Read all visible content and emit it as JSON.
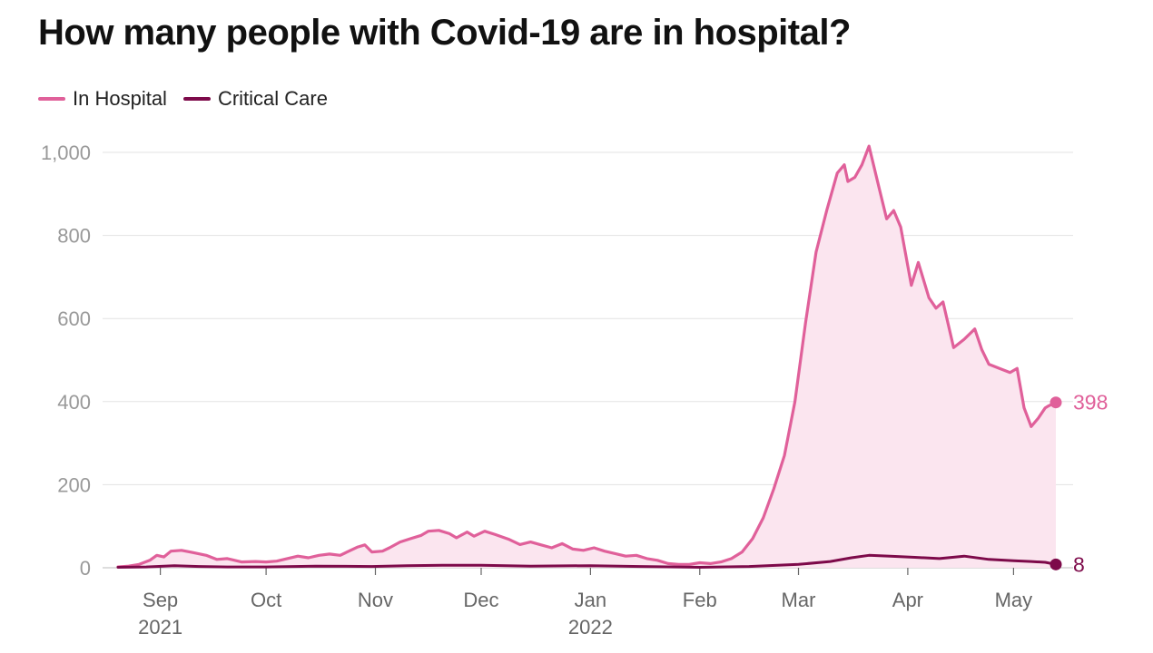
{
  "chart_data": {
    "type": "line",
    "title": "How many people with Covid-19 are in hospital?",
    "xlabel": "",
    "ylabel": "",
    "ylim": [
      0,
      1000
    ],
    "yticks": [
      0,
      200,
      400,
      600,
      800,
      "1,000"
    ],
    "x_axis": {
      "start": "2021-08-20",
      "end": "2022-05-13",
      "ticks": [
        {
          "label": "Sep",
          "sublabel": "2021",
          "date": "2021-09-01"
        },
        {
          "label": "Oct",
          "sublabel": "",
          "date": "2021-10-01"
        },
        {
          "label": "Nov",
          "sublabel": "",
          "date": "2021-11-01"
        },
        {
          "label": "Dec",
          "sublabel": "",
          "date": "2021-12-01"
        },
        {
          "label": "Jan",
          "sublabel": "2022",
          "date": "2022-01-01"
        },
        {
          "label": "Feb",
          "sublabel": "",
          "date": "2022-02-01"
        },
        {
          "label": "Mar",
          "sublabel": "",
          "date": "2022-03-01"
        },
        {
          "label": "Apr",
          "sublabel": "",
          "date": "2022-04-01"
        },
        {
          "label": "May",
          "sublabel": "",
          "date": "2022-05-01"
        }
      ]
    },
    "series": [
      {
        "name": "In Hospital",
        "color": "#e0609a",
        "fill": "#fbe5ef",
        "end_label": "398",
        "points": [
          [
            "2021-08-20",
            2
          ],
          [
            "2021-08-23",
            4
          ],
          [
            "2021-08-26",
            8
          ],
          [
            "2021-08-29",
            18
          ],
          [
            "2021-08-31",
            30
          ],
          [
            "2021-09-02",
            26
          ],
          [
            "2021-09-04",
            40
          ],
          [
            "2021-09-07",
            42
          ],
          [
            "2021-09-10",
            37
          ],
          [
            "2021-09-14",
            30
          ],
          [
            "2021-09-17",
            20
          ],
          [
            "2021-09-20",
            22
          ],
          [
            "2021-09-24",
            14
          ],
          [
            "2021-09-28",
            15
          ],
          [
            "2021-10-01",
            14
          ],
          [
            "2021-10-04",
            16
          ],
          [
            "2021-10-07",
            22
          ],
          [
            "2021-10-10",
            28
          ],
          [
            "2021-10-13",
            24
          ],
          [
            "2021-10-16",
            30
          ],
          [
            "2021-10-19",
            33
          ],
          [
            "2021-10-22",
            30
          ],
          [
            "2021-10-24",
            38
          ],
          [
            "2021-10-27",
            50
          ],
          [
            "2021-10-29",
            55
          ],
          [
            "2021-10-31",
            38
          ],
          [
            "2021-11-03",
            40
          ],
          [
            "2021-11-05",
            48
          ],
          [
            "2021-11-08",
            62
          ],
          [
            "2021-11-11",
            70
          ],
          [
            "2021-11-14",
            78
          ],
          [
            "2021-11-16",
            88
          ],
          [
            "2021-11-19",
            90
          ],
          [
            "2021-11-22",
            82
          ],
          [
            "2021-11-24",
            72
          ],
          [
            "2021-11-27",
            86
          ],
          [
            "2021-11-29",
            76
          ],
          [
            "2021-12-02",
            88
          ],
          [
            "2021-12-05",
            80
          ],
          [
            "2021-12-07",
            74
          ],
          [
            "2021-12-09",
            68
          ],
          [
            "2021-12-12",
            56
          ],
          [
            "2021-12-15",
            62
          ],
          [
            "2021-12-18",
            55
          ],
          [
            "2021-12-21",
            48
          ],
          [
            "2021-12-24",
            58
          ],
          [
            "2021-12-27",
            45
          ],
          [
            "2021-12-30",
            42
          ],
          [
            "2022-01-02",
            48
          ],
          [
            "2022-01-05",
            40
          ],
          [
            "2022-01-08",
            34
          ],
          [
            "2022-01-11",
            28
          ],
          [
            "2022-01-14",
            30
          ],
          [
            "2022-01-17",
            22
          ],
          [
            "2022-01-20",
            18
          ],
          [
            "2022-01-23",
            10
          ],
          [
            "2022-01-26",
            8
          ],
          [
            "2022-01-29",
            8
          ],
          [
            "2022-02-01",
            12
          ],
          [
            "2022-02-04",
            10
          ],
          [
            "2022-02-07",
            14
          ],
          [
            "2022-02-10",
            22
          ],
          [
            "2022-02-13",
            38
          ],
          [
            "2022-02-16",
            70
          ],
          [
            "2022-02-19",
            120
          ],
          [
            "2022-02-22",
            190
          ],
          [
            "2022-02-25",
            270
          ],
          [
            "2022-02-28",
            400
          ],
          [
            "2022-03-03",
            590
          ],
          [
            "2022-03-06",
            760
          ],
          [
            "2022-03-09",
            860
          ],
          [
            "2022-03-12",
            950
          ],
          [
            "2022-03-14",
            970
          ],
          [
            "2022-03-15",
            930
          ],
          [
            "2022-03-17",
            940
          ],
          [
            "2022-03-19",
            970
          ],
          [
            "2022-03-21",
            1015
          ],
          [
            "2022-03-24",
            910
          ],
          [
            "2022-03-26",
            840
          ],
          [
            "2022-03-28",
            860
          ],
          [
            "2022-03-30",
            820
          ],
          [
            "2022-04-02",
            680
          ],
          [
            "2022-04-04",
            735
          ],
          [
            "2022-04-07",
            650
          ],
          [
            "2022-04-09",
            625
          ],
          [
            "2022-04-11",
            640
          ],
          [
            "2022-04-14",
            530
          ],
          [
            "2022-04-17",
            550
          ],
          [
            "2022-04-20",
            575
          ],
          [
            "2022-04-22",
            525
          ],
          [
            "2022-04-24",
            490
          ],
          [
            "2022-04-27",
            480
          ],
          [
            "2022-04-30",
            470
          ],
          [
            "2022-05-02",
            480
          ],
          [
            "2022-05-04",
            385
          ],
          [
            "2022-05-06",
            340
          ],
          [
            "2022-05-08",
            360
          ],
          [
            "2022-05-10",
            385
          ],
          [
            "2022-05-11",
            390
          ],
          [
            "2022-05-13",
            398
          ]
        ]
      },
      {
        "name": "Critical Care",
        "color": "#7d0a4a",
        "end_label": "8",
        "points": [
          [
            "2021-08-20",
            1
          ],
          [
            "2021-08-28",
            2
          ],
          [
            "2021-09-05",
            5
          ],
          [
            "2021-09-12",
            3
          ],
          [
            "2021-09-20",
            2
          ],
          [
            "2021-10-01",
            2
          ],
          [
            "2021-10-15",
            4
          ],
          [
            "2021-10-31",
            3
          ],
          [
            "2021-11-10",
            5
          ],
          [
            "2021-11-20",
            6
          ],
          [
            "2021-12-01",
            6
          ],
          [
            "2021-12-15",
            4
          ],
          [
            "2022-01-01",
            5
          ],
          [
            "2022-01-15",
            3
          ],
          [
            "2022-02-01",
            1
          ],
          [
            "2022-02-15",
            3
          ],
          [
            "2022-03-01",
            8
          ],
          [
            "2022-03-10",
            15
          ],
          [
            "2022-03-16",
            24
          ],
          [
            "2022-03-21",
            30
          ],
          [
            "2022-03-27",
            28
          ],
          [
            "2022-04-03",
            25
          ],
          [
            "2022-04-10",
            22
          ],
          [
            "2022-04-17",
            28
          ],
          [
            "2022-04-24",
            20
          ],
          [
            "2022-05-01",
            17
          ],
          [
            "2022-05-06",
            15
          ],
          [
            "2022-05-10",
            13
          ],
          [
            "2022-05-13",
            8
          ]
        ]
      }
    ]
  }
}
